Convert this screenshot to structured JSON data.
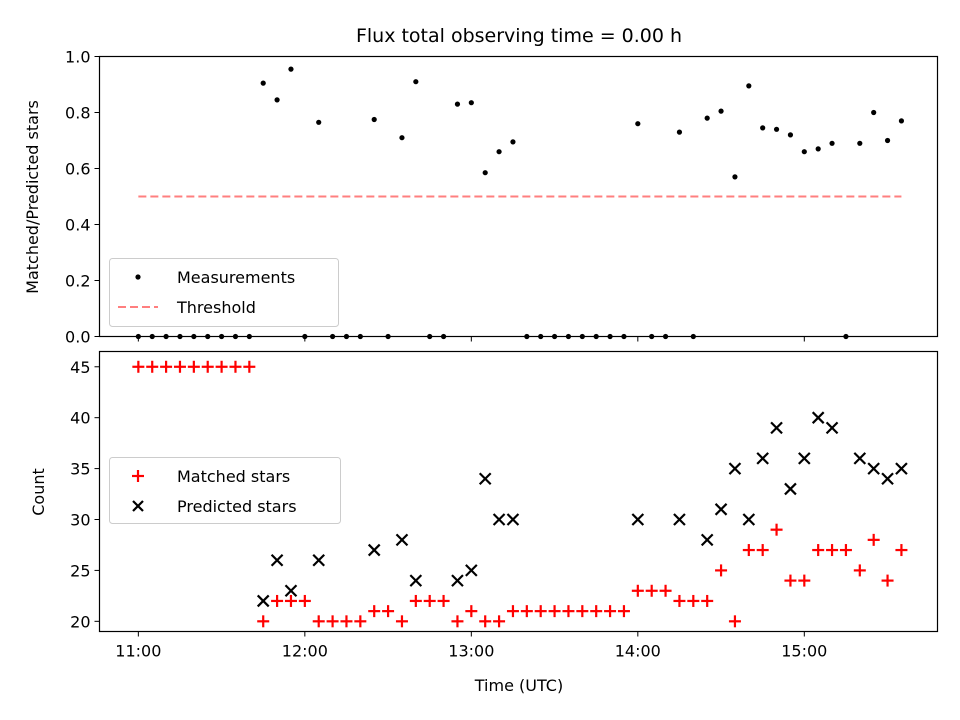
{
  "title": "Flux total observing time = 0.00 h",
  "colors": {
    "measurements": "#000000",
    "threshold": "#ff7f7f",
    "matched": "#ff0000",
    "predicted": "#000000"
  },
  "chart_data": [
    {
      "type": "scatter",
      "ylabel": "Matched/Predicted stars",
      "xlabel": "",
      "ylim": [
        0.0,
        1.0
      ],
      "xlim": [
        "10:46",
        "15:48"
      ],
      "yticks": [
        "0.0",
        "0.2",
        "0.4",
        "0.6",
        "0.8",
        "1.0"
      ],
      "legend_position": "lower-left",
      "series": [
        {
          "name": "Measurements",
          "marker": "dot",
          "x": [
            "11:00",
            "11:05",
            "11:10",
            "11:15",
            "11:20",
            "11:25",
            "11:30",
            "11:35",
            "11:40",
            "11:45",
            "11:50",
            "11:55",
            "12:00",
            "12:05",
            "12:10",
            "12:15",
            "12:20",
            "12:25",
            "12:30",
            "12:35",
            "12:40",
            "12:45",
            "12:50",
            "12:55",
            "13:00",
            "13:05",
            "13:10",
            "13:15",
            "13:20",
            "13:25",
            "13:30",
            "13:35",
            "13:40",
            "13:45",
            "13:50",
            "13:55",
            "14:00",
            "14:05",
            "14:10",
            "14:15",
            "14:20",
            "14:25",
            "14:30",
            "14:35",
            "14:40",
            "14:45",
            "14:50",
            "14:55",
            "15:00",
            "15:05",
            "15:10",
            "15:15",
            "15:20",
            "15:25",
            "15:30",
            "15:35"
          ],
          "y": [
            0.0,
            0.0,
            0.0,
            0.0,
            0.0,
            0.0,
            0.0,
            0.0,
            0.0,
            0.905,
            0.845,
            0.955,
            0.0,
            0.765,
            0.0,
            0.0,
            0.0,
            0.775,
            0.0,
            0.71,
            0.91,
            0.0,
            0.0,
            0.83,
            0.835,
            0.585,
            0.66,
            0.695,
            0.0,
            0.0,
            0.0,
            0.0,
            0.0,
            0.0,
            0.0,
            0.0,
            0.76,
            0.0,
            0.0,
            0.73,
            0.0,
            0.78,
            0.805,
            0.57,
            0.895,
            0.745,
            0.74,
            0.72,
            0.66,
            0.67,
            0.69,
            0.0,
            0.69,
            0.8,
            0.7,
            0.77
          ]
        },
        {
          "name": "Threshold",
          "marker": "dashed-line",
          "x": [
            "11:00",
            "15:35"
          ],
          "y": [
            0.5,
            0.5
          ]
        }
      ]
    },
    {
      "type": "scatter",
      "ylabel": "Count",
      "xlabel": "Time (UTC)",
      "ylim": [
        19,
        46.5
      ],
      "xlim": [
        "10:46",
        "15:48"
      ],
      "yticks": [
        "20",
        "25",
        "30",
        "35",
        "40",
        "45"
      ],
      "xticks": [
        "11:00",
        "12:00",
        "13:00",
        "14:00",
        "15:00"
      ],
      "legend_position": "center-left",
      "series": [
        {
          "name": "Matched stars",
          "marker": "plus",
          "x": [
            "11:00",
            "11:05",
            "11:10",
            "11:15",
            "11:20",
            "11:25",
            "11:30",
            "11:35",
            "11:40",
            "11:45",
            "11:50",
            "11:55",
            "12:00",
            "12:05",
            "12:10",
            "12:15",
            "12:20",
            "12:25",
            "12:30",
            "12:35",
            "12:40",
            "12:45",
            "12:50",
            "12:55",
            "13:00",
            "13:05",
            "13:10",
            "13:15",
            "13:20",
            "13:25",
            "13:30",
            "13:35",
            "13:40",
            "13:45",
            "13:50",
            "13:55",
            "14:00",
            "14:05",
            "14:10",
            "14:15",
            "14:20",
            "14:25",
            "14:30",
            "14:35",
            "14:40",
            "14:45",
            "14:50",
            "14:55",
            "15:00",
            "15:05",
            "15:10",
            "15:15",
            "15:20",
            "15:25",
            "15:30",
            "15:35"
          ],
          "y": [
            45,
            45,
            45,
            45,
            45,
            45,
            45,
            45,
            45,
            20,
            22,
            22,
            22,
            20,
            20,
            20,
            20,
            21,
            21,
            20,
            22,
            22,
            22,
            20,
            21,
            20,
            20,
            21,
            21,
            21,
            21,
            21,
            21,
            21,
            21,
            21,
            23,
            23,
            23,
            22,
            22,
            22,
            25,
            20,
            27,
            27,
            29,
            24,
            24,
            27,
            27,
            27,
            25,
            28,
            24,
            27
          ]
        },
        {
          "name": "Predicted stars",
          "marker": "x",
          "x": [
            "11:45",
            "11:50",
            "11:55",
            "12:05",
            "12:25",
            "12:35",
            "12:40",
            "12:55",
            "13:00",
            "13:05",
            "13:10",
            "13:15",
            "14:00",
            "14:15",
            "14:25",
            "14:30",
            "14:35",
            "14:40",
            "14:45",
            "14:50",
            "14:55",
            "15:00",
            "15:05",
            "15:10",
            "15:20",
            "15:25",
            "15:30",
            "15:35"
          ],
          "y": [
            22,
            26,
            23,
            26,
            27,
            28,
            24,
            24,
            25,
            34,
            30,
            30,
            30,
            30,
            28,
            31,
            35,
            30,
            36,
            39,
            33,
            36,
            40,
            39,
            36,
            35,
            34,
            35
          ]
        }
      ]
    }
  ]
}
